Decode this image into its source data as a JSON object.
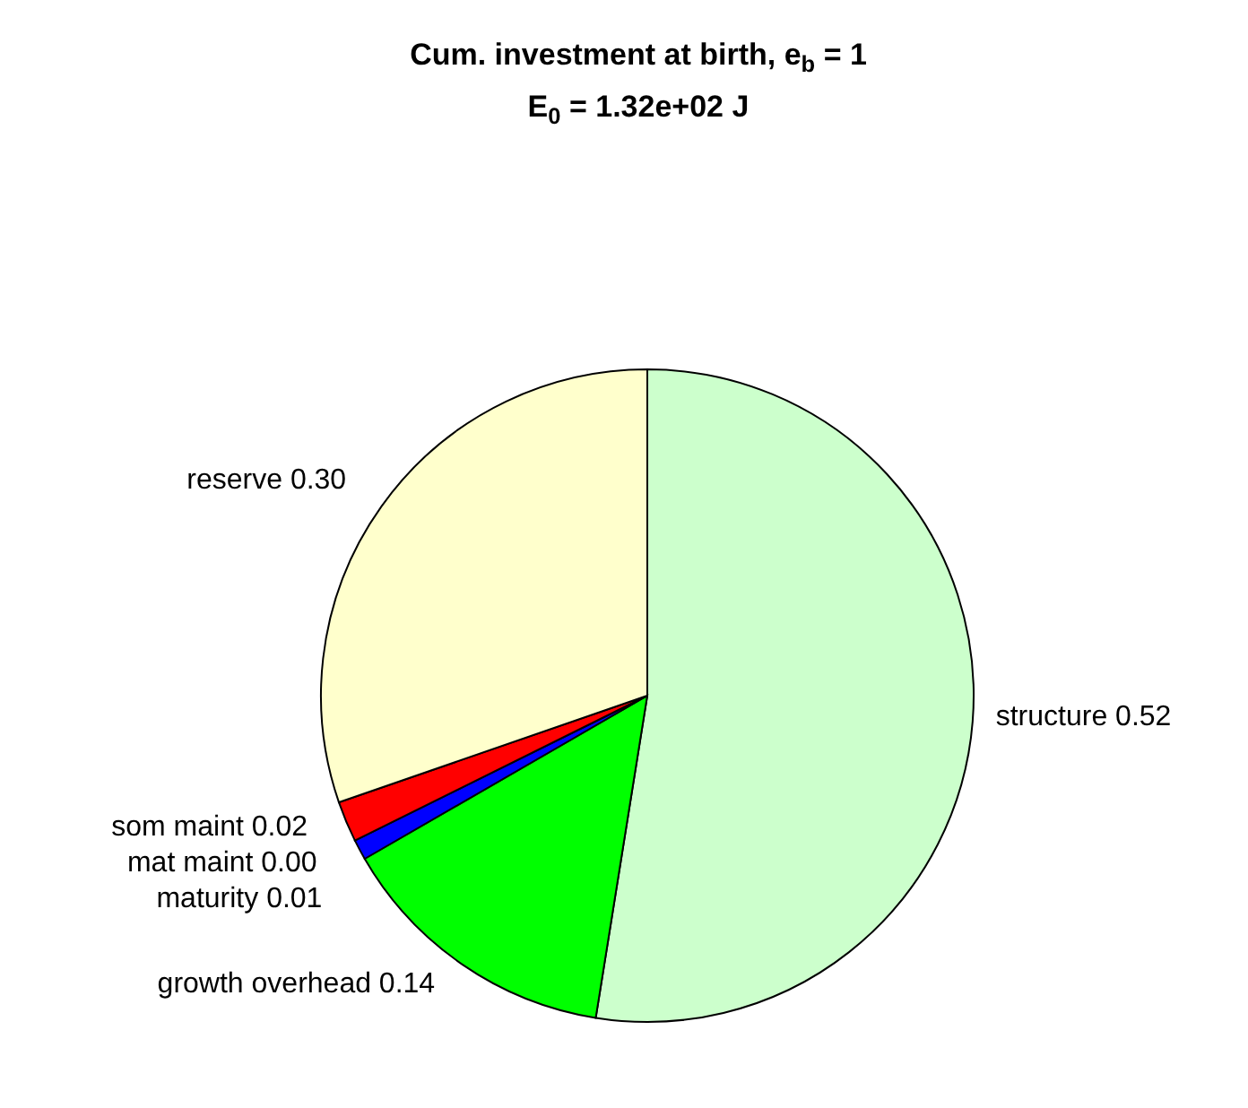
{
  "chart_data": {
    "type": "pie",
    "title": "Cum. investment at birth, e$_{b}$ = 1",
    "subtitle": "E$_{0}$ = 1.32e+02 J",
    "categories": [
      "structure",
      "growth overhead",
      "maturity",
      "mat maint",
      "som maint",
      "reserve"
    ],
    "values": [
      0.52,
      0.14,
      0.01,
      0.0,
      0.02,
      0.3
    ],
    "value_labels": [
      "0.52",
      "0.14",
      "0.01",
      "0.00",
      "0.02",
      "0.30"
    ],
    "colors": [
      "#ccffcc",
      "#00ff00",
      "#0000ff",
      "#000000",
      "#ff0000",
      "#ffffcc"
    ]
  }
}
